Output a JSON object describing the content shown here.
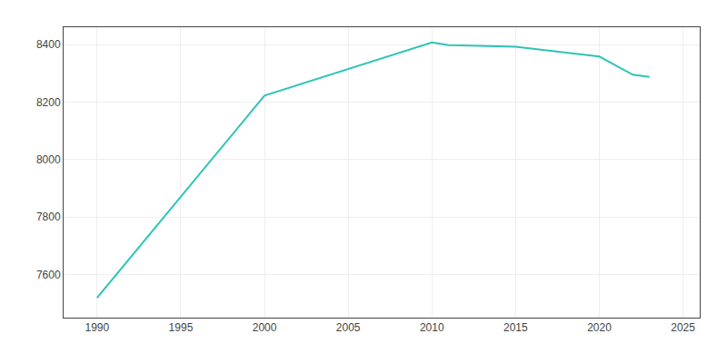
{
  "chart_data": {
    "type": "line",
    "x": [
      1990,
      2000,
      2010,
      2011,
      2015,
      2020,
      2022,
      2023
    ],
    "values": [
      7519,
      8222,
      8407,
      8398,
      8392,
      8358,
      8295,
      8287
    ],
    "color": "#2ec4b6",
    "xlim": [
      1988,
      2026
    ],
    "ylim": [
      7450,
      8460
    ],
    "xticks": [
      1990,
      1995,
      2000,
      2005,
      2010,
      2015,
      2020,
      2025
    ],
    "yticks": [
      7600,
      7800,
      8000,
      8200,
      8400
    ],
    "grid": true
  }
}
